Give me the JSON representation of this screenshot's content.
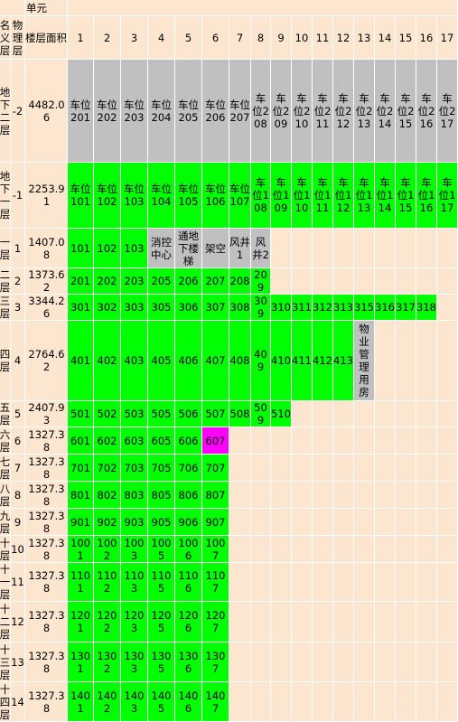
{
  "header": {
    "unit_title": "单元",
    "name_title": "名义层",
    "floor_title": "物理层",
    "area_title": "楼层面积",
    "units": [
      1,
      2,
      3,
      4,
      5,
      6,
      7,
      8,
      9,
      10,
      11,
      12,
      13,
      14,
      15,
      16,
      17
    ]
  },
  "rows": [
    {
      "name": "地下二层",
      "floor": -2,
      "area": 4482.06,
      "color": "#c0c0c0",
      "units": [
        "车位201",
        "车位202",
        "车位203",
        "车位204",
        "车位205",
        "车位206",
        "车位207",
        "车位208",
        "车位209",
        "车位210",
        "车位211",
        "车位212",
        "车位213",
        "车位214",
        "车位215",
        "车位216",
        "车位217"
      ]
    },
    {
      "name": "地下一层",
      "floor": -1,
      "area": 2253.91,
      "color": "#00ff00",
      "units": [
        "车位101",
        "车位102",
        "车位103",
        "车位104",
        "车位105",
        "车位106",
        "车位107",
        "车位108",
        "车位109",
        "车位110",
        "车位111",
        "车位112",
        "车位113",
        "车位114",
        "车位115",
        "车位116",
        "车位117"
      ]
    },
    {
      "name": "一层",
      "floor": 1,
      "area": 1407.08,
      "color": "#00ff00",
      "units": [
        "101",
        "102",
        "103",
        {
          "label": "消控中心",
          "color": "#c0c0c0"
        },
        {
          "label": "通地下楼梯",
          "color": "#c0c0c0"
        },
        {
          "label": "架空",
          "color": "#c0c0c0"
        },
        {
          "label": "风井1",
          "color": "#c0c0c0"
        },
        {
          "label": "风井2",
          "color": "#c0c0c0"
        }
      ]
    },
    {
      "name": "二层",
      "floor": 2,
      "area": 1373.62,
      "color": "#00ff00",
      "units": [
        "201",
        "202",
        "203",
        "205",
        "206",
        "207",
        "208",
        "209"
      ]
    },
    {
      "name": "三层",
      "floor": 3,
      "area": 3344.26,
      "color": "#00ff00",
      "units": [
        "301",
        "302",
        "303",
        "305",
        "306",
        "307",
        "308",
        "309",
        "310",
        "311",
        "312",
        "313",
        "315",
        "316",
        "317",
        "318"
      ]
    },
    {
      "name": "四层",
      "floor": 4,
      "area": 2764.62,
      "color": "#00ff00",
      "units": [
        "401",
        "402",
        "403",
        "405",
        "406",
        "407",
        "408",
        "409",
        "410",
        "411",
        "412",
        "413",
        {
          "label": "物业管理用房",
          "color": "#c0c0c0"
        }
      ]
    },
    {
      "name": "五层",
      "floor": 5,
      "area": 2407.93,
      "color": "#00ff00",
      "units": [
        "501",
        "502",
        "503",
        "505",
        "506",
        "507",
        "508",
        "509",
        "510"
      ]
    },
    {
      "name": "六层",
      "floor": 6,
      "area": 1327.38,
      "color": "#00ff00",
      "units": [
        "601",
        "602",
        "603",
        "605",
        "606",
        {
          "label": "607",
          "color": "#ff00ff"
        }
      ]
    },
    {
      "name": "七层",
      "floor": 7,
      "area": 1327.38,
      "color": "#00ff00",
      "units": [
        "701",
        "702",
        "703",
        "705",
        "706",
        "707"
      ]
    },
    {
      "name": "八层",
      "floor": 8,
      "area": 1327.38,
      "color": "#00ff00",
      "units": [
        "801",
        "802",
        "803",
        "805",
        "806",
        "807"
      ]
    },
    {
      "name": "九层",
      "floor": 9,
      "area": 1327.38,
      "color": "#00ff00",
      "units": [
        "901",
        "902",
        "903",
        "905",
        "906",
        "907"
      ]
    },
    {
      "name": "十层",
      "floor": 10,
      "area": 1327.38,
      "color": "#00ff00",
      "units": [
        "1001",
        "1002",
        "1003",
        "1005",
        "1006",
        "1007"
      ]
    },
    {
      "name": "十一层",
      "floor": 11,
      "area": 1327.38,
      "color": "#00ff00",
      "units": [
        "1101",
        "1102",
        "1103",
        "1105",
        "1106",
        "1107"
      ]
    },
    {
      "name": "十二层",
      "floor": 12,
      "area": 1327.38,
      "color": "#00ff00",
      "units": [
        "1201",
        "1202",
        "1203",
        "1205",
        "1206",
        "1207"
      ]
    },
    {
      "name": "十三层",
      "floor": 13,
      "area": 1327.38,
      "color": "#00ff00",
      "units": [
        "1301",
        "1302",
        "1303",
        "1305",
        "1306",
        "1307"
      ]
    },
    {
      "name": "十四层",
      "floor": 14,
      "area": 1327.38,
      "color": "#00ff00",
      "units": [
        "1401",
        "1402",
        "1403",
        "1405",
        "1406",
        "1407"
      ]
    }
  ]
}
